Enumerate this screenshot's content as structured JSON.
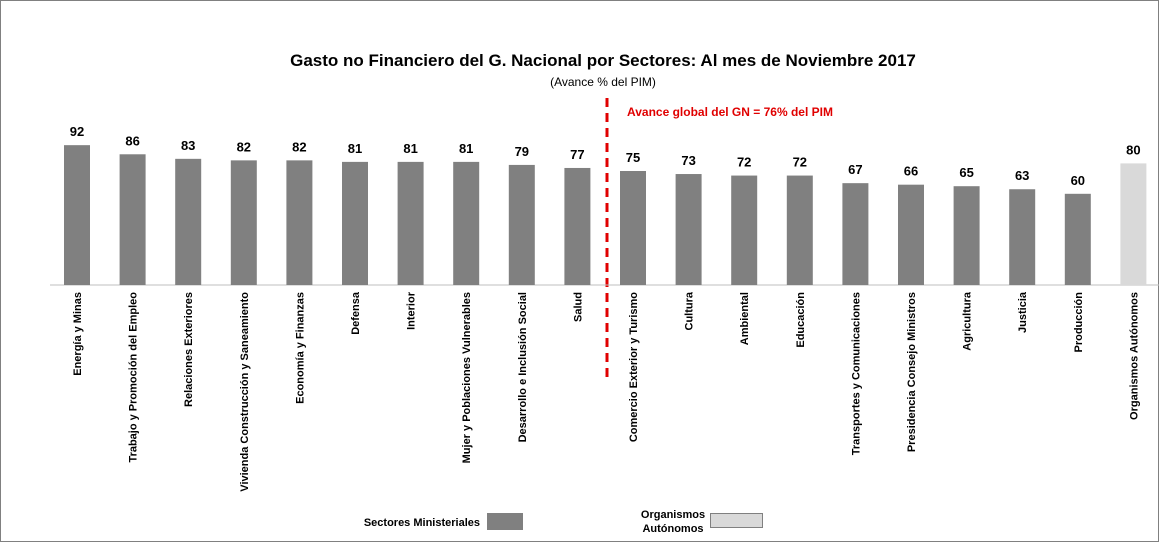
{
  "chart_data": {
    "type": "bar",
    "title": "Gasto no Financiero del G. Nacional por Sectores: Al mes de  Noviembre 2017",
    "subtitle": "(Avance % del PIM)",
    "annotation": "Avance global del GN = 76% del PIM",
    "categories": [
      "Energía y Minas",
      "Trabajo y Promoción del Empleo",
      "Relaciones Exteriores",
      "Vivienda Construcción y Saneamiento",
      "Economía y Finanzas",
      "Defensa",
      "Interior",
      "Mujer y Poblaciones Vulnerables",
      "Desarrollo e Inclusión Social",
      "Salud",
      "Comercio Exterior y Turismo",
      "Cultura",
      "Ambiental",
      "Educación",
      "Transportes y Comunicaciones",
      "Presidencia Consejo Ministros",
      "Agricultura",
      "Justicia",
      "Producción",
      "Organismos Autónomos"
    ],
    "series": [
      {
        "name": "Sectores Ministeriales",
        "color": "#808080",
        "values": [
          92,
          86,
          83,
          82,
          82,
          81,
          81,
          81,
          79,
          77,
          75,
          73,
          72,
          72,
          67,
          66,
          65,
          63,
          60,
          null
        ]
      },
      {
        "name": "Organismos Autónomos",
        "color": "#d9d9d9",
        "values": [
          null,
          null,
          null,
          null,
          null,
          null,
          null,
          null,
          null,
          null,
          null,
          null,
          null,
          null,
          null,
          null,
          null,
          null,
          null,
          80
        ]
      }
    ]
  }
}
